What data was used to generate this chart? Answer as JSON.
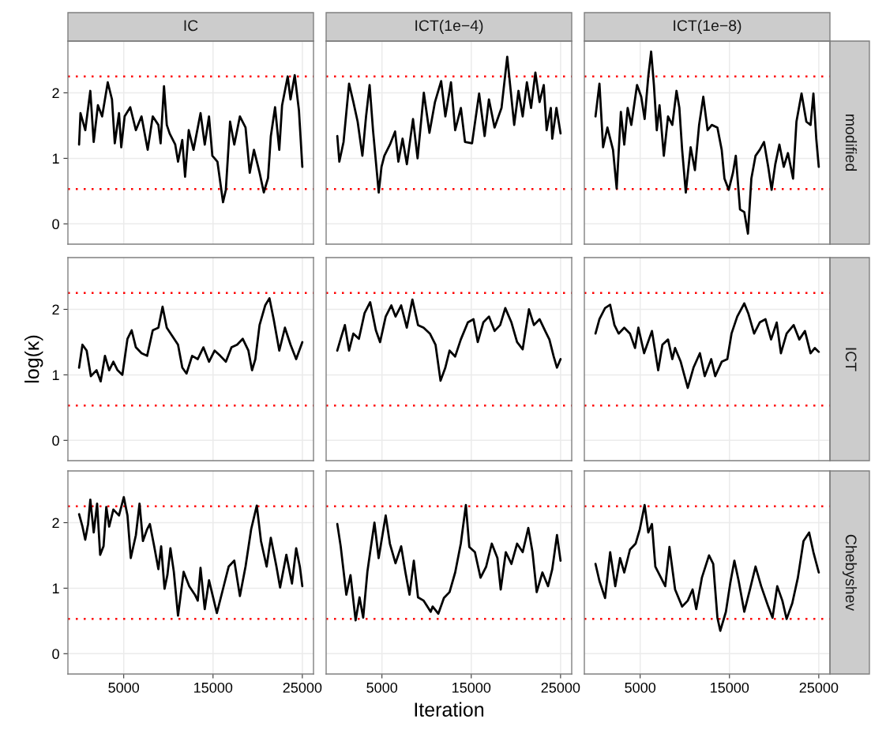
{
  "chart_data": [
    {
      "type": "line",
      "title": "IC",
      "color": "#000000",
      "xlim": [
        -1250,
        26250
      ],
      "xticks": [
        5000,
        15000,
        25000
      ],
      "ylim": [
        -0.31,
        2.79
      ],
      "yticks": [
        0,
        1,
        2
      ],
      "grid": true,
      "tick_labels": "y",
      "ref_lines": [
        {
          "axis": "y",
          "value": 2.25,
          "color": "#ff0000",
          "line_style": "dotted"
        },
        {
          "axis": "y",
          "value": 0.53,
          "color": "#ff0000",
          "line_style": "dotted"
        }
      ],
      "x": [
        0,
        157,
        693,
        1259,
        1637,
        2110,
        2582,
        3212,
        3684,
        3999,
        4471,
        4723,
        5101,
        5731,
        6360,
        6990,
        7683,
        8249,
        8879,
        9131,
        9509,
        9824,
        10139,
        10768,
        11083,
        11555,
        11870,
        12280,
        12815,
        13602,
        14074,
        14547,
        14924,
        15491,
        16121,
        16436,
        16908,
        17380,
        18010,
        18640,
        19112,
        19584,
        20214,
        20686,
        21159,
        21474,
        21946,
        22418,
        22733,
        23363,
        23678,
        24150,
        24622,
        25000
      ],
      "values": [
        1.21,
        1.69,
        1.43,
        2.03,
        1.25,
        1.81,
        1.64,
        2.16,
        1.9,
        1.23,
        1.69,
        1.17,
        1.64,
        1.78,
        1.43,
        1.64,
        1.13,
        1.64,
        1.51,
        1.23,
        2.1,
        1.51,
        1.38,
        1.21,
        0.95,
        1.28,
        0.72,
        1.43,
        1.13,
        1.69,
        1.21,
        1.64,
        1.04,
        0.95,
        0.33,
        0.52,
        1.56,
        1.21,
        1.64,
        1.47,
        0.78,
        1.13,
        0.78,
        0.48,
        0.7,
        1.34,
        1.78,
        1.13,
        1.81,
        2.25,
        1.9,
        2.27,
        1.73,
        0.87
      ]
    },
    {
      "type": "line",
      "title": "ICT(1e−4)",
      "color": "#000000",
      "xlim": [
        -1250,
        26250
      ],
      "xticks": [
        5000,
        15000,
        25000
      ],
      "ylim": [
        -0.31,
        2.79
      ],
      "yticks": [
        0,
        1,
        2
      ],
      "grid": true,
      "tick_labels": false,
      "ref_lines": [
        {
          "axis": "y",
          "value": 2.25,
          "color": "#ff0000",
          "line_style": "dotted"
        },
        {
          "axis": "y",
          "value": 0.53,
          "color": "#ff0000",
          "line_style": "dotted"
        }
      ],
      "x": [
        0,
        230,
        700,
        1320,
        1800,
        2280,
        2810,
        3220,
        3620,
        4000,
        4640,
        4950,
        5270,
        5900,
        6470,
        6840,
        7310,
        7790,
        8480,
        8990,
        9690,
        10320,
        10940,
        11630,
        12100,
        12730,
        13200,
        13840,
        14300,
        15090,
        15880,
        16500,
        16980,
        17610,
        18390,
        19030,
        19810,
        20290,
        20760,
        21230,
        21700,
        22180,
        22650,
        23120,
        23440,
        23910,
        24070,
        24540,
        25000
      ],
      "values": [
        1.34,
        0.95,
        1.25,
        2.14,
        1.86,
        1.56,
        1.04,
        1.64,
        2.12,
        1.43,
        0.48,
        0.87,
        1.04,
        1.21,
        1.41,
        0.95,
        1.3,
        0.91,
        1.6,
        1.0,
        2.0,
        1.39,
        1.86,
        2.18,
        1.64,
        2.16,
        1.43,
        1.77,
        1.25,
        1.23,
        1.99,
        1.34,
        1.9,
        1.47,
        1.77,
        2.55,
        1.51,
        2.03,
        1.64,
        2.16,
        1.77,
        2.31,
        1.86,
        2.12,
        1.43,
        1.77,
        1.3,
        1.77,
        1.38
      ]
    },
    {
      "type": "line",
      "title": "ICT(1e−8)",
      "y2label": "modified",
      "color": "#000000",
      "xlim": [
        -1250,
        26250
      ],
      "xticks": [
        5000,
        15000,
        25000
      ],
      "ylim": [
        -0.31,
        2.79
      ],
      "yticks": [
        0,
        1,
        2
      ],
      "grid": true,
      "tick_labels": false,
      "ref_lines": [
        {
          "axis": "y",
          "value": 2.25,
          "color": "#ff0000",
          "line_style": "dotted"
        },
        {
          "axis": "y",
          "value": 0.53,
          "color": "#ff0000",
          "line_style": "dotted"
        }
      ],
      "x": [
        0,
        440,
        850,
        1330,
        1960,
        2370,
        2840,
        3220,
        3600,
        4010,
        4650,
        5120,
        5500,
        5910,
        6230,
        6540,
        6860,
        7170,
        7650,
        8120,
        8600,
        9070,
        9390,
        9700,
        10110,
        10650,
        11130,
        11600,
        12070,
        12550,
        13020,
        13650,
        14130,
        14440,
        14920,
        15390,
        15710,
        16180,
        16660,
        17070,
        17450,
        17920,
        18390,
        18870,
        19340,
        19720,
        20130,
        20590,
        21080,
        21550,
        22120,
        22500,
        23070,
        23610,
        24080,
        24400,
        24720,
        25000
      ],
      "values": [
        1.64,
        2.14,
        1.17,
        1.47,
        1.13,
        0.54,
        1.71,
        1.21,
        1.77,
        1.51,
        2.12,
        1.94,
        1.6,
        2.25,
        2.63,
        2.12,
        1.43,
        1.81,
        1.04,
        1.64,
        1.51,
        2.03,
        1.77,
        1.13,
        0.48,
        1.17,
        0.82,
        1.51,
        1.94,
        1.43,
        1.51,
        1.47,
        1.13,
        0.69,
        0.52,
        0.78,
        1.04,
        0.22,
        0.18,
        -0.15,
        0.69,
        1.04,
        1.13,
        1.25,
        0.87,
        0.52,
        0.91,
        1.21,
        0.87,
        1.08,
        0.69,
        1.56,
        1.99,
        1.56,
        1.51,
        1.99,
        1.3,
        0.87
      ]
    },
    {
      "type": "line",
      "ylabel": "log(κ)",
      "color": "#000000",
      "xlim": [
        -1250,
        26250
      ],
      "xticks": [
        5000,
        15000,
        25000
      ],
      "ylim": [
        -0.31,
        2.79
      ],
      "yticks": [
        0,
        1,
        2
      ],
      "grid": true,
      "tick_labels": "y",
      "ref_lines": [
        {
          "axis": "y",
          "value": 2.25,
          "color": "#ff0000",
          "line_style": "dotted"
        },
        {
          "axis": "y",
          "value": 0.53,
          "color": "#ff0000",
          "line_style": "dotted"
        }
      ],
      "x": [
        0,
        380,
        850,
        1320,
        1950,
        2420,
        2900,
        3370,
        3840,
        4310,
        4850,
        5420,
        5890,
        6360,
        6990,
        7620,
        8250,
        8880,
        9350,
        9820,
        10450,
        11080,
        11560,
        12030,
        12660,
        13290,
        13920,
        14550,
        15180,
        15810,
        16440,
        17070,
        17700,
        18330,
        18960,
        19370,
        19740,
        20210,
        20840,
        21320,
        21790,
        22420,
        23050,
        23680,
        24310,
        25000
      ],
      "values": [
        1.11,
        1.46,
        1.37,
        0.98,
        1.07,
        0.9,
        1.29,
        1.07,
        1.2,
        1.07,
        1.0,
        1.55,
        1.68,
        1.42,
        1.33,
        1.29,
        1.68,
        1.72,
        2.04,
        1.72,
        1.59,
        1.46,
        1.11,
        1.02,
        1.29,
        1.24,
        1.42,
        1.2,
        1.37,
        1.29,
        1.2,
        1.42,
        1.46,
        1.55,
        1.37,
        1.07,
        1.24,
        1.76,
        2.06,
        2.17,
        1.85,
        1.37,
        1.72,
        1.46,
        1.24,
        1.5
      ]
    },
    {
      "type": "line",
      "color": "#000000",
      "xlim": [
        -1250,
        26250
      ],
      "xticks": [
        5000,
        15000,
        25000
      ],
      "ylim": [
        -0.31,
        2.79
      ],
      "yticks": [
        0,
        1,
        2
      ],
      "grid": true,
      "tick_labels": false,
      "ref_lines": [
        {
          "axis": "y",
          "value": 2.25,
          "color": "#ff0000",
          "line_style": "dotted"
        },
        {
          "axis": "y",
          "value": 0.53,
          "color": "#ff0000",
          "line_style": "dotted"
        }
      ],
      "x": [
        0,
        380,
        850,
        1320,
        1800,
        2420,
        3050,
        3680,
        4320,
        4790,
        5420,
        6050,
        6520,
        7150,
        7780,
        8410,
        9040,
        9670,
        10370,
        11000,
        11560,
        12100,
        12570,
        13200,
        13830,
        14620,
        15250,
        15730,
        16350,
        16980,
        17610,
        18240,
        18810,
        19500,
        20130,
        20760,
        21460,
        22020,
        22650,
        23280,
        23750,
        24230,
        24600,
        25000
      ],
      "values": [
        1.37,
        1.55,
        1.76,
        1.37,
        1.63,
        1.55,
        1.94,
        2.11,
        1.68,
        1.5,
        1.89,
        2.06,
        1.89,
        2.06,
        1.72,
        2.15,
        1.76,
        1.72,
        1.63,
        1.46,
        0.91,
        1.11,
        1.37,
        1.28,
        1.54,
        1.8,
        1.85,
        1.5,
        1.8,
        1.89,
        1.67,
        1.76,
        2.02,
        1.8,
        1.5,
        1.39,
        2.0,
        1.76,
        1.85,
        1.67,
        1.54,
        1.28,
        1.11,
        1.24
      ]
    },
    {
      "type": "line",
      "y2label": "ICT",
      "color": "#000000",
      "xlim": [
        -1250,
        26250
      ],
      "xticks": [
        5000,
        15000,
        25000
      ],
      "ylim": [
        -0.31,
        2.79
      ],
      "yticks": [
        0,
        1,
        2
      ],
      "grid": true,
      "tick_labels": false,
      "ref_lines": [
        {
          "axis": "y",
          "value": 2.25,
          "color": "#ff0000",
          "line_style": "dotted"
        },
        {
          "axis": "y",
          "value": 0.53,
          "color": "#ff0000",
          "line_style": "dotted"
        }
      ],
      "x": [
        0,
        440,
        1070,
        1640,
        2120,
        2590,
        3220,
        3860,
        4420,
        4800,
        5440,
        6320,
        7020,
        7490,
        8120,
        8600,
        8910,
        9540,
        10330,
        10970,
        11690,
        12230,
        12960,
        13400,
        14130,
        14760,
        15230,
        15870,
        16660,
        17130,
        17760,
        18390,
        19030,
        19660,
        20290,
        20760,
        21400,
        22190,
        22820,
        23450,
        24080,
        24560,
        25000
      ],
      "values": [
        1.63,
        1.85,
        2.02,
        2.07,
        1.76,
        1.63,
        1.72,
        1.63,
        1.41,
        1.72,
        1.33,
        1.67,
        1.07,
        1.46,
        1.54,
        1.24,
        1.41,
        1.2,
        0.8,
        1.11,
        1.33,
        0.98,
        1.24,
        0.98,
        1.2,
        1.24,
        1.63,
        1.89,
        2.09,
        1.93,
        1.63,
        1.8,
        1.85,
        1.54,
        1.8,
        1.33,
        1.63,
        1.76,
        1.54,
        1.67,
        1.33,
        1.41,
        1.35
      ]
    },
    {
      "type": "line",
      "color": "#000000",
      "xlim": [
        -1250,
        26250
      ],
      "xticks": [
        5000,
        15000,
        25000
      ],
      "ylim": [
        -0.31,
        2.79
      ],
      "yticks": [
        0,
        1,
        2
      ],
      "grid": true,
      "ref_lines": [
        {
          "axis": "y",
          "value": 2.25,
          "color": "#ff0000",
          "line_style": "dotted"
        },
        {
          "axis": "y",
          "value": 0.53,
          "color": "#ff0000",
          "line_style": "dotted"
        }
      ],
      "x": [
        0,
        380,
        690,
        1010,
        1260,
        1640,
        2020,
        2360,
        2740,
        3050,
        3370,
        3840,
        4470,
        5010,
        5420,
        5790,
        6360,
        6770,
        7150,
        7620,
        7930,
        8410,
        8880,
        9190,
        9570,
        9890,
        10230,
        10610,
        11080,
        11710,
        12340,
        12970,
        13290,
        13600,
        14070,
        14550,
        15430,
        16120,
        16750,
        17380,
        18010,
        18640,
        19270,
        19900,
        20370,
        21000,
        21470,
        22100,
        22510,
        23210,
        23840,
        24310,
        24720,
        25000
      ],
      "values": [
        2.13,
        1.94,
        1.74,
        1.98,
        2.35,
        1.85,
        2.29,
        1.51,
        1.64,
        2.24,
        1.94,
        2.2,
        2.11,
        2.39,
        2.11,
        1.46,
        1.81,
        2.29,
        1.72,
        1.9,
        1.98,
        1.64,
        1.29,
        1.64,
        0.99,
        1.2,
        1.61,
        1.25,
        0.58,
        1.25,
        1.03,
        0.9,
        0.81,
        1.31,
        0.68,
        1.12,
        0.62,
        0.99,
        1.33,
        1.42,
        0.88,
        1.33,
        1.9,
        2.26,
        1.72,
        1.33,
        1.77,
        1.33,
        1.01,
        1.51,
        1.07,
        1.61,
        1.33,
        1.03
      ]
    },
    {
      "type": "line",
      "xlabel": "Iteration",
      "color": "#000000",
      "xlim": [
        -1250,
        26250
      ],
      "xticks": [
        5000,
        15000,
        25000
      ],
      "ylim": [
        -0.31,
        2.79
      ],
      "yticks": [
        0,
        1,
        2
      ],
      "grid": true,
      "tick_labels": "x",
      "ref_lines": [
        {
          "axis": "y",
          "value": 2.25,
          "color": "#ff0000",
          "line_style": "dotted"
        },
        {
          "axis": "y",
          "value": 0.53,
          "color": "#ff0000",
          "line_style": "dotted"
        }
      ],
      "x": [
        0,
        380,
        1010,
        1480,
        2050,
        2490,
        2900,
        3370,
        3680,
        4160,
        4630,
        5420,
        5890,
        6520,
        7150,
        7620,
        8090,
        8570,
        9040,
        9670,
        10460,
        10680,
        11310,
        11940,
        12570,
        13200,
        13830,
        14400,
        14780,
        15410,
        16040,
        16670,
        17300,
        17930,
        18300,
        18870,
        19500,
        20130,
        20760,
        21390,
        21860,
        22330,
        22970,
        23600,
        24070,
        24600,
        25000
      ],
      "values": [
        1.98,
        1.64,
        0.9,
        1.2,
        0.51,
        0.86,
        0.55,
        1.25,
        1.55,
        2.0,
        1.46,
        2.11,
        1.68,
        1.38,
        1.64,
        1.25,
        0.9,
        1.42,
        0.86,
        0.81,
        0.64,
        0.72,
        0.61,
        0.85,
        0.94,
        1.24,
        1.68,
        2.27,
        1.63,
        1.55,
        1.16,
        1.33,
        1.68,
        1.46,
        0.98,
        1.55,
        1.37,
        1.68,
        1.55,
        1.92,
        1.55,
        0.94,
        1.24,
        1.03,
        1.29,
        1.81,
        1.42
      ]
    },
    {
      "type": "line",
      "y2label": "Chebyshev",
      "color": "#000000",
      "xlim": [
        -1250,
        26250
      ],
      "xticks": [
        5000,
        15000,
        25000
      ],
      "ylim": [
        -0.31,
        2.79
      ],
      "yticks": [
        0,
        1,
        2
      ],
      "grid": true,
      "tick_labels": "x",
      "ref_lines": [
        {
          "axis": "y",
          "value": 2.25,
          "color": "#ff0000",
          "line_style": "dotted"
        },
        {
          "axis": "y",
          "value": 0.53,
          "color": "#ff0000",
          "line_style": "dotted"
        }
      ],
      "x": [
        0,
        440,
        1070,
        1640,
        2210,
        2750,
        3220,
        3860,
        4490,
        4960,
        5500,
        5910,
        6320,
        6700,
        7330,
        7810,
        8280,
        8910,
        9700,
        10330,
        10870,
        11280,
        11910,
        12710,
        13180,
        13650,
        13970,
        14600,
        15080,
        15550,
        16030,
        16660,
        17290,
        17920,
        18550,
        19340,
        19820,
        20350,
        20920,
        21400,
        22030,
        22660,
        23290,
        23920,
        24400,
        25000
      ],
      "values": [
        1.37,
        1.11,
        0.85,
        1.55,
        1.03,
        1.46,
        1.24,
        1.59,
        1.68,
        1.9,
        2.27,
        1.85,
        1.98,
        1.33,
        1.16,
        1.03,
        1.63,
        0.98,
        0.72,
        0.81,
        0.98,
        0.68,
        1.16,
        1.5,
        1.37,
        0.55,
        0.35,
        0.64,
        1.07,
        1.42,
        1.11,
        0.64,
        0.98,
        1.33,
        1.03,
        0.72,
        0.55,
        1.03,
        0.81,
        0.53,
        0.77,
        1.16,
        1.72,
        1.85,
        1.55,
        1.24
      ]
    }
  ]
}
